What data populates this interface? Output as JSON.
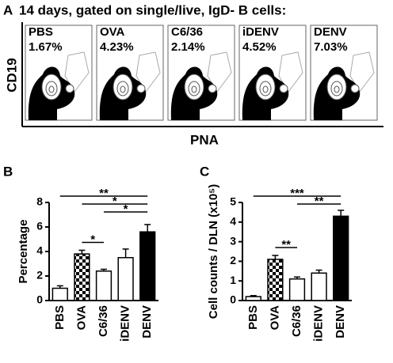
{
  "panel_a": {
    "panel": "A",
    "title": "14 days, gated on single/live, IgD- B cells:",
    "y_label": "CD19",
    "x_label": "PNA",
    "plots": [
      {
        "name": "PBS",
        "percent": "1.67%"
      },
      {
        "name": "OVA",
        "percent": "4.23%"
      },
      {
        "name": "C6/36",
        "percent": "2.14%"
      },
      {
        "name": "iDENV",
        "percent": "4.52%"
      },
      {
        "name": "DENV",
        "percent": "7.03%"
      }
    ]
  },
  "chart_data": [
    {
      "type": "bar",
      "panel": "B",
      "y_label": "Percentage",
      "categories": [
        "PBS",
        "OVA",
        "C6/36",
        "iDENV",
        "DENV"
      ],
      "values": [
        1.0,
        3.8,
        2.4,
        3.5,
        5.6
      ],
      "errors": [
        0.2,
        0.3,
        0.15,
        0.7,
        0.6
      ],
      "fills": [
        "white",
        "checker",
        "white",
        "white",
        "black"
      ],
      "ylim": [
        0,
        8
      ],
      "yticks": [
        0,
        2,
        4,
        6,
        8
      ],
      "significance": [
        {
          "from": 0,
          "to": 4,
          "label": "**"
        },
        {
          "from": 1,
          "to": 4,
          "label": "*"
        },
        {
          "from": 2,
          "to": 4,
          "label": "*"
        },
        {
          "from": 1,
          "to": 2,
          "label": "*"
        }
      ]
    },
    {
      "type": "bar",
      "panel": "C",
      "y_label": "Cell counts / DLN (x10⁵)",
      "categories": [
        "PBS",
        "OVA",
        "C6/36",
        "iDENV",
        "DENV"
      ],
      "values": [
        0.2,
        2.1,
        1.1,
        1.4,
        4.3
      ],
      "errors": [
        0.05,
        0.2,
        0.1,
        0.15,
        0.3
      ],
      "fills": [
        "white",
        "checker",
        "white",
        "white",
        "black"
      ],
      "ylim": [
        0,
        5
      ],
      "yticks": [
        0,
        1,
        2,
        3,
        4,
        5
      ],
      "significance": [
        {
          "from": 0,
          "to": 4,
          "label": "***"
        },
        {
          "from": 2,
          "to": 4,
          "label": "**"
        },
        {
          "from": 1,
          "to": 2,
          "label": "**"
        }
      ]
    }
  ]
}
